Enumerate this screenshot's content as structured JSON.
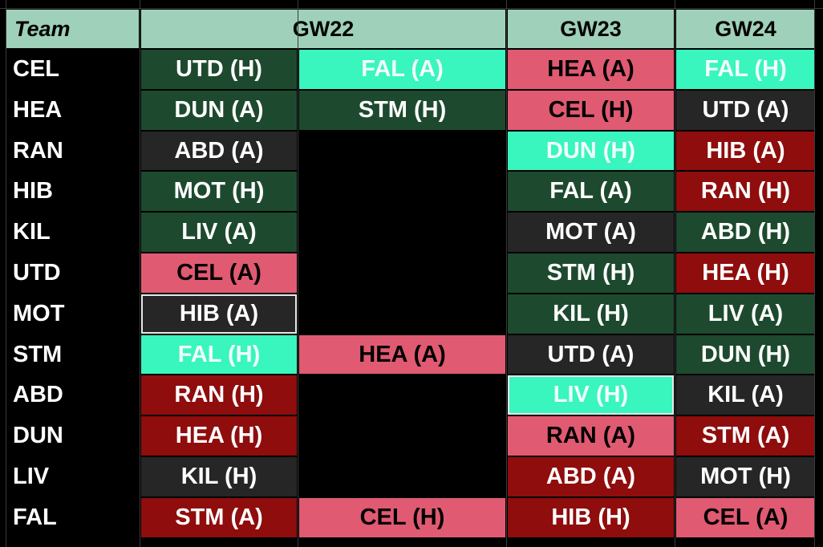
{
  "colors": {
    "header": "#9fd0b9",
    "team_bg": "#000000",
    "easy_dark_green": "#1d4a2e",
    "very_easy_mint": "#39f5be",
    "neutral_dark": "#262626",
    "hard_pink": "#e05a72",
    "very_hard_red": "#8f0d0d",
    "empty": "#000000"
  },
  "header": {
    "team_label": "Team",
    "gameweeks": [
      "GW22",
      "GW23",
      "GW24"
    ]
  },
  "rows": [
    {
      "team": "CEL",
      "gw22a": {
        "text": "UTD (H)",
        "level": "easy"
      },
      "gw22b": {
        "text": "FAL (A)",
        "level": "very_easy"
      },
      "gw23": {
        "text": "HEA (A)",
        "level": "hard"
      },
      "gw24": {
        "text": "FAL (H)",
        "level": "very_easy"
      }
    },
    {
      "team": "HEA",
      "gw22a": {
        "text": "DUN (A)",
        "level": "easy"
      },
      "gw22b": {
        "text": "STM (H)",
        "level": "easy"
      },
      "gw23": {
        "text": "CEL (H)",
        "level": "hard"
      },
      "gw24": {
        "text": "UTD (A)",
        "level": "neutral"
      }
    },
    {
      "team": "RAN",
      "gw22a": {
        "text": "ABD (A)",
        "level": "neutral"
      },
      "gw22b": null,
      "gw23": {
        "text": "DUN (H)",
        "level": "very_easy"
      },
      "gw24": {
        "text": "HIB (A)",
        "level": "very_hard"
      }
    },
    {
      "team": "HIB",
      "gw22a": {
        "text": "MOT (H)",
        "level": "easy"
      },
      "gw22b": null,
      "gw23": {
        "text": "FAL (A)",
        "level": "easy"
      },
      "gw24": {
        "text": "RAN (H)",
        "level": "very_hard"
      }
    },
    {
      "team": "KIL",
      "gw22a": {
        "text": "LIV (A)",
        "level": "easy"
      },
      "gw22b": null,
      "gw23": {
        "text": "MOT (A)",
        "level": "neutral"
      },
      "gw24": {
        "text": "ABD (H)",
        "level": "easy"
      }
    },
    {
      "team": "UTD",
      "gw22a": {
        "text": "CEL (A)",
        "level": "hard"
      },
      "gw22b": null,
      "gw23": {
        "text": "STM (H)",
        "level": "easy"
      },
      "gw24": {
        "text": "HEA (H)",
        "level": "very_hard"
      }
    },
    {
      "team": "MOT",
      "gw22a": {
        "text": "HIB (A)",
        "level": "neutral",
        "selected": true
      },
      "gw22b": null,
      "gw23": {
        "text": "KIL (H)",
        "level": "easy"
      },
      "gw24": {
        "text": "LIV (A)",
        "level": "easy"
      }
    },
    {
      "team": "STM",
      "gw22a": {
        "text": "FAL (H)",
        "level": "very_easy"
      },
      "gw22b": {
        "text": "HEA (A)",
        "level": "hard"
      },
      "gw23": {
        "text": "UTD (A)",
        "level": "neutral"
      },
      "gw24": {
        "text": "DUN (H)",
        "level": "easy"
      }
    },
    {
      "team": "ABD",
      "gw22a": {
        "text": "RAN (H)",
        "level": "very_hard"
      },
      "gw22b": null,
      "gw23": {
        "text": "LIV (H)",
        "level": "very_easy",
        "selected": true
      },
      "gw24": {
        "text": "KIL (A)",
        "level": "neutral"
      }
    },
    {
      "team": "DUN",
      "gw22a": {
        "text": "HEA (H)",
        "level": "very_hard"
      },
      "gw22b": null,
      "gw23": {
        "text": "RAN (A)",
        "level": "hard"
      },
      "gw24": {
        "text": "STM (A)",
        "level": "very_hard"
      }
    },
    {
      "team": "LIV",
      "gw22a": {
        "text": "KIL (H)",
        "level": "neutral"
      },
      "gw22b": null,
      "gw23": {
        "text": "ABD (A)",
        "level": "very_hard"
      },
      "gw24": {
        "text": "MOT (H)",
        "level": "neutral"
      }
    },
    {
      "team": "FAL",
      "gw22a": {
        "text": "STM (A)",
        "level": "very_hard"
      },
      "gw22b": {
        "text": "CEL (H)",
        "level": "hard"
      },
      "gw23": {
        "text": "HIB (H)",
        "level": "very_hard"
      },
      "gw24": {
        "text": "CEL (A)",
        "level": "hard"
      }
    }
  ]
}
